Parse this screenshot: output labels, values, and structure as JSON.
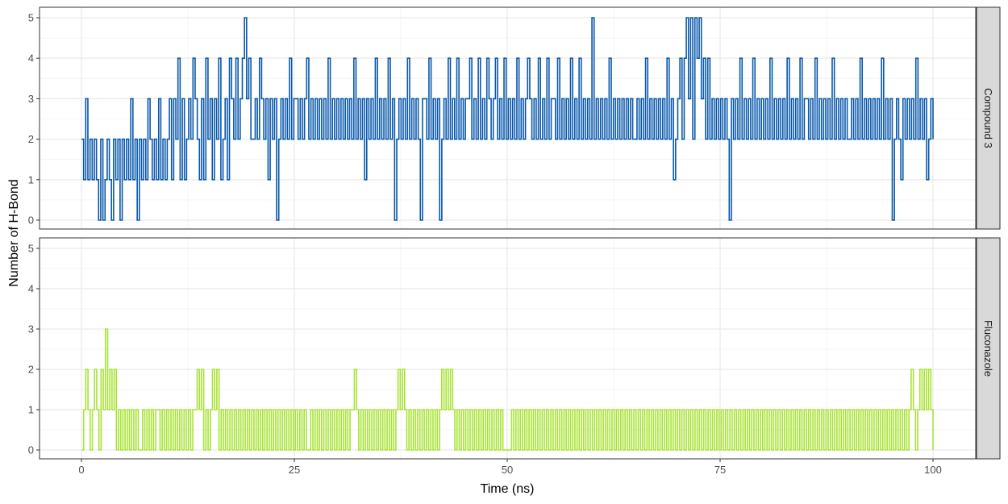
{
  "chart_data": {
    "type": "line",
    "xlabel": "Time (ns)",
    "ylabel": "Number of H-Bond",
    "xlim": [
      0,
      100
    ],
    "ylim": [
      0,
      5
    ],
    "x_ticks": [
      "0",
      "25",
      "50",
      "75",
      "100"
    ],
    "y_ticks": [
      "0",
      "1",
      "2",
      "3",
      "4",
      "5"
    ],
    "grid": true,
    "facets": [
      {
        "name": "Compound 3",
        "color": "#0757AC",
        "x_start": 0,
        "x_end": 100,
        "values_encoding": "digit string, evenly spaced samples from x_start to x_end",
        "values": "21312121020121021202121312021213212131212313241312324321314231324123143242345342232432313230232324233232342323232324232323232324232313232423232423023232423232033242323023242324232334232423243234232423232423234323242324233242323242324232325232323242323232323223232423232323242312342453525453424232323232032324232324232323242323232423232423323242323232423232322323242323232324232302321323232423231232"
      },
      {
        "name": "Fluconazole",
        "color": "#A8E335",
        "x_start": 0,
        "x_end": 100,
        "values_encoding": "digit string, evenly spaced samples from x_start to x_end",
        "values": "0121012102131212010101010100101010110101010101010101121201012120101010101010101010101010101010101010101001010101010101010101121010101010101010101212101010101010101012121210101010101010101010101000010101010101010101010101010101010101010101010101010101010101010101010101010101010101010101010101010101010101010101010101010101010101010101010101010101010101010101010101010101010101010121012121210"
      }
    ]
  }
}
